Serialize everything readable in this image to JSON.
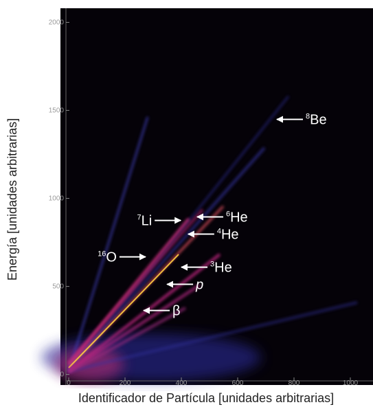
{
  "chart_data": {
    "type": "density",
    "xlabel": "Identificador de Partícula [unidades arbitrarias]",
    "ylabel": "Energía [unidades arbitrarias]",
    "xlim": [
      0,
      1080
    ],
    "ylim": [
      -60,
      2080
    ],
    "xticks": [
      0,
      200,
      400,
      600,
      800,
      1000
    ],
    "yticks": [
      0,
      500,
      1000,
      1500,
      2000
    ],
    "annotations": [
      {
        "mass": "8",
        "symbol": "Be",
        "x": 739,
        "y": 1449
      },
      {
        "mass": "6",
        "symbol": "He",
        "x": 456,
        "y": 895
      },
      {
        "mass": "7",
        "symbol": "Li",
        "x": 398,
        "y": 875
      },
      {
        "mass": "4",
        "symbol": "He",
        "x": 424,
        "y": 797
      },
      {
        "mass": "16",
        "symbol": "O",
        "x": 273,
        "y": 668
      },
      {
        "mass": "3",
        "symbol": "He",
        "x": 400,
        "y": 609
      },
      {
        "symbol": "p",
        "x": 349,
        "y": 512
      },
      {
        "symbol": "β",
        "x": 266,
        "y": 363
      }
    ]
  }
}
